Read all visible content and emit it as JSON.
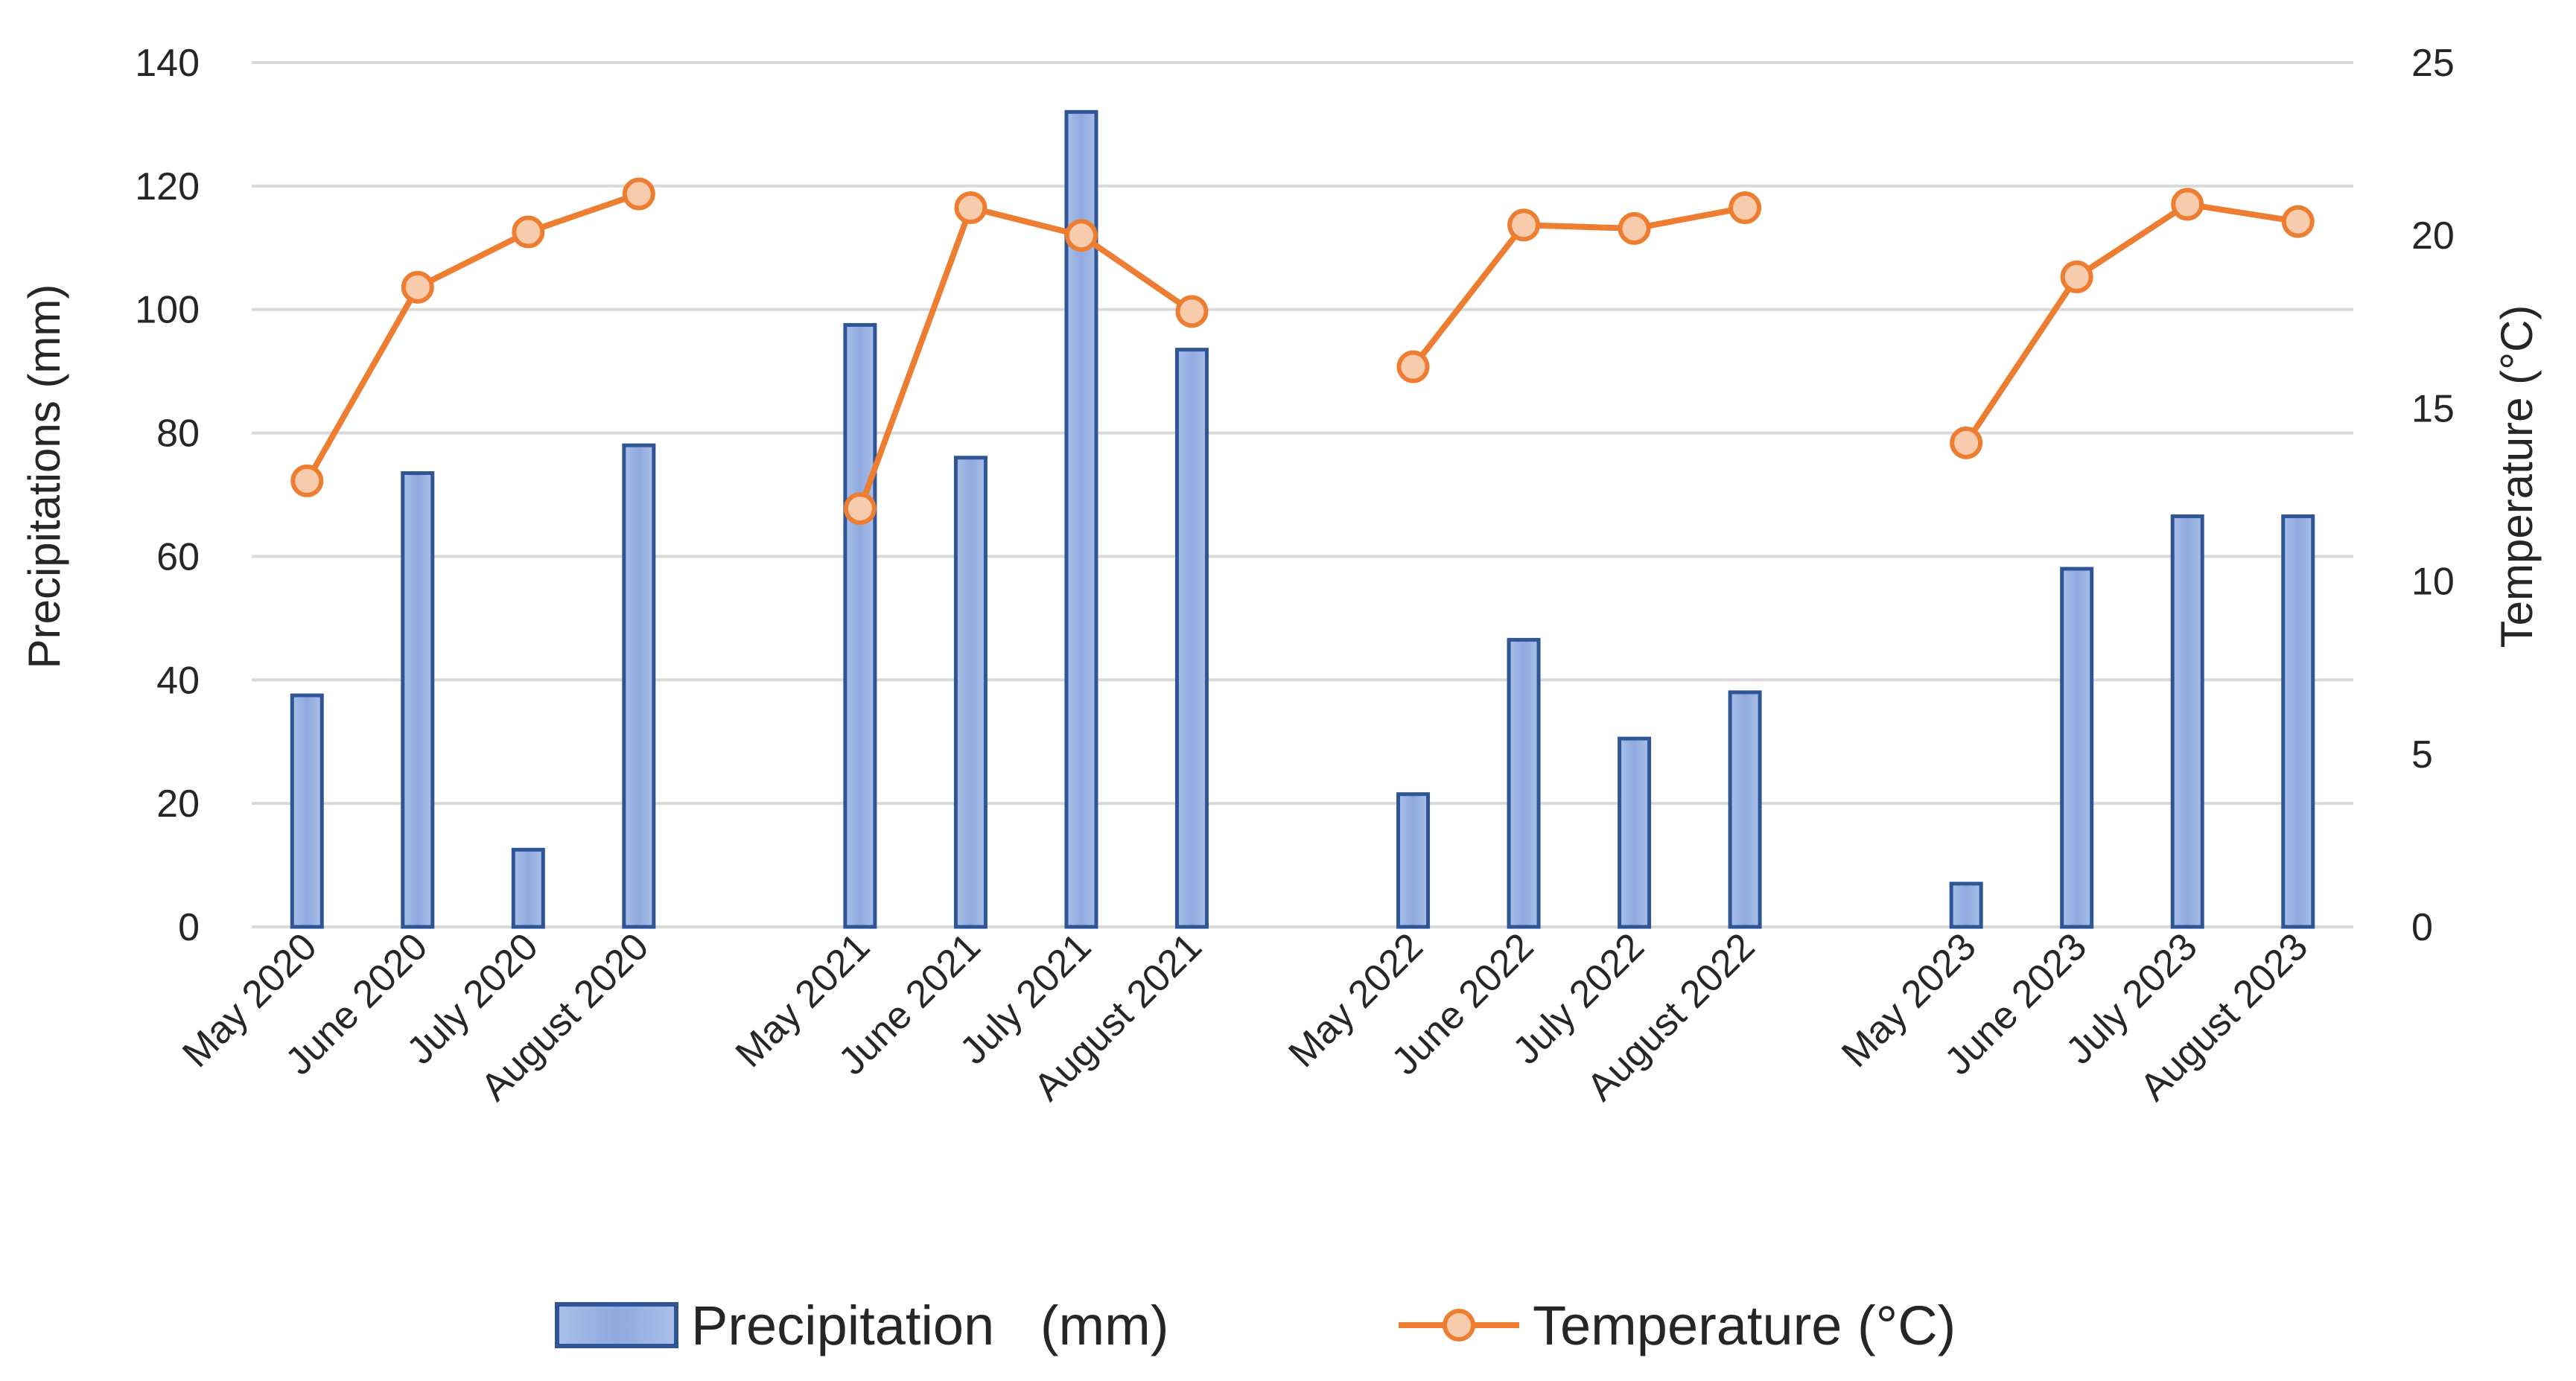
{
  "chart_data": {
    "type": "bar+line",
    "title": "",
    "categories": [
      "May 2020",
      "June 2020",
      "July 2020",
      "August 2020",
      "May 2021",
      "June 2021",
      "July 2021",
      "August 2021",
      "May 2022",
      "June 2022",
      "July 2022",
      "August 2022",
      "May 2023",
      "June 2023",
      "July 2023",
      "August 2023"
    ],
    "series": [
      {
        "name": "Precipitation   (mm)",
        "type": "bar",
        "axis": "left",
        "color": "#4472c4",
        "values": [
          37.5,
          73.5,
          12.5,
          78,
          97.5,
          76,
          132,
          93.5,
          21.5,
          46.5,
          30.5,
          38,
          7,
          58,
          66.5,
          66.5
        ]
      },
      {
        "name": "Temperature (°C)",
        "type": "line",
        "axis": "right",
        "color": "#ed7d31",
        "values": [
          12.9,
          18.5,
          20.1,
          21.2,
          12.1,
          20.8,
          20.0,
          17.8,
          16.2,
          20.3,
          20.2,
          20.8,
          14.0,
          18.8,
          20.9,
          20.4
        ]
      }
    ],
    "ylabel_left": "Precipitations (mm)",
    "ylabel_right": "Temperature (°C)",
    "ylim_left": [
      0,
      140
    ],
    "ylim_right": [
      0,
      25
    ],
    "yticks_left": [
      "0",
      "20",
      "40",
      "60",
      "80",
      "100",
      "120",
      "140"
    ],
    "yticks_right": [
      "0",
      "5",
      "10",
      "15",
      "20",
      "25"
    ],
    "grid": true,
    "legend": {
      "placement": "bottom-center",
      "items": [
        "Precipitation   (mm)",
        "Temperature (°C)"
      ]
    }
  }
}
